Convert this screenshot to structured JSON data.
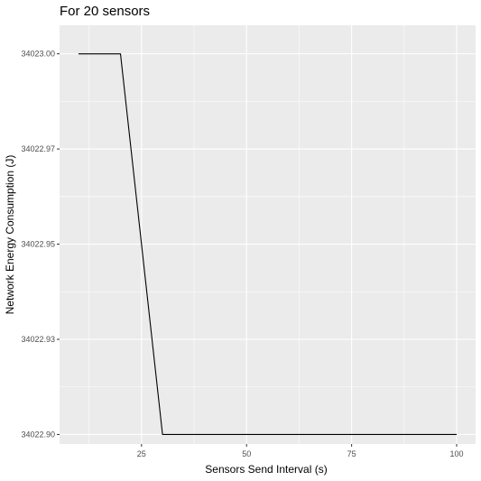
{
  "chart_data": {
    "type": "line",
    "title": "For 20 sensors",
    "xlabel": "Sensors Send Interval (s)",
    "ylabel": "Network Energy Consumption (J)",
    "xlim": [
      5.5,
      104.5
    ],
    "ylim": [
      34022.8975,
      34023.0075
    ],
    "x_ticks": [
      25,
      50,
      75,
      100
    ],
    "x_tick_labels": [
      "25",
      "50",
      "75",
      "100"
    ],
    "y_ticks": [
      34022.9,
      34022.925,
      34022.95,
      34022.975,
      34023.0
    ],
    "y_tick_labels": [
      "34022.90",
      "34022.93",
      "34022.95",
      "34022.97",
      "34023.00"
    ],
    "grid": true,
    "series": [
      {
        "x": [
          10,
          20,
          30,
          40,
          50,
          60,
          70,
          80,
          90,
          100
        ],
        "values": [
          34023.0,
          34023.0,
          34022.9,
          34022.9,
          34022.9,
          34022.9,
          34022.9,
          34022.9,
          34022.9,
          34022.9
        ]
      }
    ]
  },
  "colors": {
    "panel_background": "#ebebeb",
    "grid_major": "#ffffff",
    "line": "#000000",
    "tick": "#333333",
    "tick_label": "#4d4d4d"
  }
}
